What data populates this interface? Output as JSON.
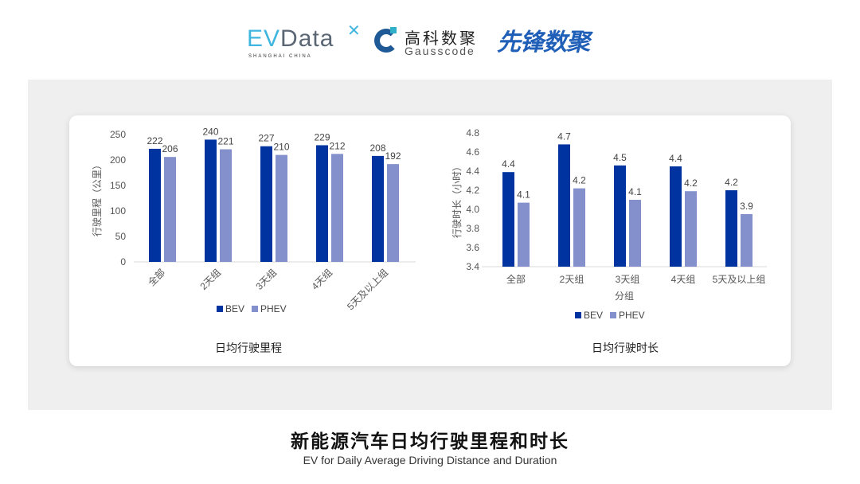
{
  "logos": {
    "evdata": {
      "text": "EVData",
      "sub": "SHANGHAI CHINA"
    },
    "gausscode": {
      "cn": "高科数聚",
      "en": "Gausscode"
    },
    "xianfeng": {
      "text": "先锋数聚"
    }
  },
  "title": "新能源汽车日均行驶里程和时长",
  "subtitle": "EV for Daily Average Driving Distance and Duration",
  "colors": {
    "BEV": "#0033a0",
    "PHEV": "#8490cc"
  },
  "chart_data": [
    {
      "type": "bar",
      "title": "日均行驶里程",
      "xlabel": "",
      "ylabel": "行驶里程（公里）",
      "ylim": [
        0,
        250
      ],
      "yticks": [
        "0",
        "50",
        "100",
        "150",
        "200",
        "250"
      ],
      "categories": [
        "全部",
        "2天组",
        "3天组",
        "4天组",
        "5天及以上组"
      ],
      "series": [
        {
          "name": "BEV",
          "values": [
            222,
            240,
            227,
            229,
            208
          ],
          "labels": [
            "222",
            "240",
            "227",
            "229",
            "208"
          ]
        },
        {
          "name": "PHEV",
          "values": [
            206,
            221,
            210,
            212,
            192
          ],
          "labels": [
            "206",
            "221",
            "210",
            "212",
            "192"
          ]
        }
      ],
      "legend": "bottom",
      "grid": false
    },
    {
      "type": "bar",
      "title": "日均行驶时长",
      "xlabel": "分组",
      "ylabel": "行驶时长（小时）",
      "ylim": [
        3.4,
        4.8
      ],
      "yticks": [
        "3.4",
        "3.6",
        "3.8",
        "4.0",
        "4.2",
        "4.4",
        "4.6",
        "4.8"
      ],
      "categories": [
        "全部",
        "2天组",
        "3天组",
        "4天组",
        "5天及以上组"
      ],
      "series": [
        {
          "name": "BEV",
          "values": [
            4.39,
            4.68,
            4.46,
            4.45,
            4.2
          ],
          "labels": [
            "4.4",
            "4.7",
            "4.5",
            "4.4",
            "4.2"
          ]
        },
        {
          "name": "PHEV",
          "values": [
            4.07,
            4.22,
            4.1,
            4.19,
            3.95
          ],
          "labels": [
            "4.1",
            "4.2",
            "4.1",
            "4.2",
            "3.9"
          ]
        }
      ],
      "legend": "bottom",
      "grid": false
    }
  ]
}
